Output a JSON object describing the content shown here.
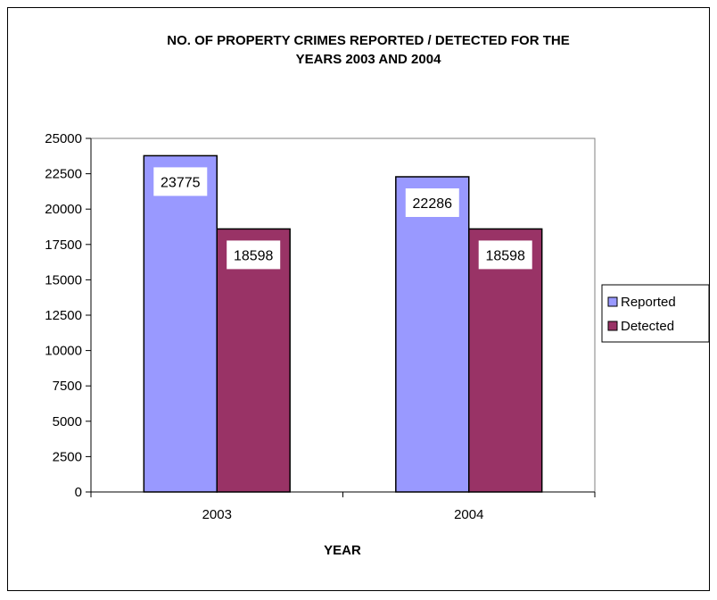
{
  "chart_data": {
    "type": "bar",
    "title_lines": [
      "NO. OF PROPERTY CRIMES REPORTED / DETECTED FOR THE",
      "YEARS 2003 AND 2004"
    ],
    "xlabel": "YEAR",
    "ylabel": "",
    "categories": [
      "2003",
      "2004"
    ],
    "ylim": [
      0,
      25000
    ],
    "yticks": [
      "0",
      "2500",
      "5000",
      "7500",
      "10000",
      "12500",
      "15000",
      "17500",
      "20000",
      "22500",
      "25000"
    ],
    "series": [
      {
        "name": "Reported",
        "color": "#9999ff",
        "values": [
          23775,
          22286
        ]
      },
      {
        "name": "Detected",
        "color": "#993366",
        "values": [
          18598,
          18598
        ]
      }
    ],
    "data_labels": [
      [
        "23775",
        "22286"
      ],
      [
        "18598",
        "18598"
      ]
    ],
    "legend_position": "right",
    "grid": false
  }
}
